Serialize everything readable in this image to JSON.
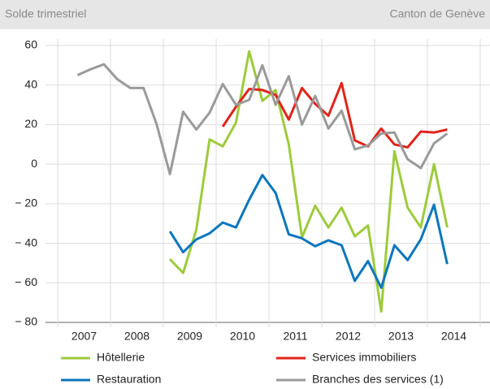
{
  "chart_data": {
    "type": "line",
    "title": "Solde trimestriel",
    "subtitle": "Canton de Genève",
    "x": [
      2007.375,
      2007.625,
      2007.875,
      2008.125,
      2008.375,
      2008.625,
      2008.875,
      2009.125,
      2009.375,
      2009.625,
      2009.875,
      2010.125,
      2010.375,
      2010.625,
      2010.875,
      2011.125,
      2011.375,
      2011.625,
      2011.875,
      2012.125,
      2012.375,
      2012.625,
      2012.875,
      2013.125,
      2013.375,
      2013.625,
      2013.875,
      2014.125,
      2014.375
    ],
    "series": [
      {
        "name": "Hôtellerie",
        "color": "#9dcb3b",
        "values": [
          null,
          null,
          null,
          null,
          null,
          null,
          null,
          -48,
          -55,
          -33,
          12.5,
          9,
          21,
          57,
          32,
          37.5,
          10,
          -37,
          -21,
          -32,
          -22,
          -36.5,
          -31,
          -74.5,
          6.5,
          -22,
          -32,
          0,
          -32
        ]
      },
      {
        "name": "Services immobiliers",
        "color": "#e2231a",
        "values": [
          null,
          null,
          null,
          null,
          null,
          null,
          null,
          null,
          null,
          null,
          null,
          19,
          29,
          38,
          37.5,
          35,
          22.5,
          38.5,
          30.5,
          24.5,
          41,
          12,
          9,
          18,
          10,
          8.5,
          16.5,
          16,
          17.5
        ]
      },
      {
        "name": "Restauration",
        "color": "#0a77bd",
        "values": [
          null,
          null,
          null,
          null,
          null,
          null,
          null,
          -34,
          -44.5,
          -38,
          -35,
          -29.5,
          -32,
          -18,
          -5.5,
          -14.5,
          -35.5,
          -37.5,
          -41.5,
          -38.5,
          -41,
          -59,
          -49,
          -62.5,
          -41,
          -48.5,
          -38,
          -20.5,
          -50.5
        ]
      },
      {
        "name": "Branches des services (1)",
        "color": "#9a9a9a",
        "values": [
          45,
          48,
          50.5,
          43,
          38.5,
          38.5,
          20,
          -5,
          26.5,
          17.5,
          26,
          40.5,
          30,
          32.5,
          50,
          30,
          44.5,
          20,
          34.5,
          18,
          27,
          7.5,
          9.5,
          15.5,
          16,
          2.5,
          -2,
          10.5,
          15.5
        ]
      }
    ],
    "xlim": [
      2007,
      2015
    ],
    "xticks": [
      {
        "value": 2007.5,
        "label": "2007"
      },
      {
        "value": 2008.5,
        "label": "2008"
      },
      {
        "value": 2009.5,
        "label": "2009"
      },
      {
        "value": 2010.5,
        "label": "2010"
      },
      {
        "value": 2011.5,
        "label": "2011"
      },
      {
        "value": 2012.5,
        "label": "2012"
      },
      {
        "value": 2013.5,
        "label": "2013"
      },
      {
        "value": 2014.5,
        "label": "2014"
      }
    ],
    "xgrid": [
      2007,
      2008,
      2009,
      2010,
      2011,
      2012,
      2013,
      2014,
      2015
    ],
    "ylim": [
      -80,
      60
    ],
    "yticks": [
      {
        "value": -80,
        "label": "− 80"
      },
      {
        "value": -60,
        "label": "− 60"
      },
      {
        "value": -40,
        "label": "− 40"
      },
      {
        "value": -20,
        "label": "− 20"
      },
      0,
      20,
      40,
      60
    ],
    "grid": true
  }
}
